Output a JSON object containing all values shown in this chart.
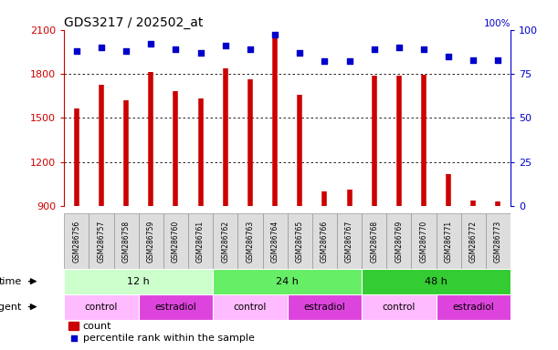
{
  "title": "GDS3217 / 202502_at",
  "samples": [
    "GSM286756",
    "GSM286757",
    "GSM286758",
    "GSM286759",
    "GSM286760",
    "GSM286761",
    "GSM286762",
    "GSM286763",
    "GSM286764",
    "GSM286765",
    "GSM286766",
    "GSM286767",
    "GSM286768",
    "GSM286769",
    "GSM286770",
    "GSM286771",
    "GSM286772",
    "GSM286773"
  ],
  "counts": [
    1565,
    1725,
    1620,
    1810,
    1680,
    1635,
    1840,
    1765,
    2060,
    1660,
    1000,
    1010,
    1785,
    1790,
    1795,
    1120,
    940,
    930
  ],
  "percentiles": [
    88,
    90,
    88,
    92,
    89,
    87,
    91,
    89,
    97,
    87,
    82,
    82,
    89,
    90,
    89,
    85,
    83,
    83
  ],
  "ylim_left": [
    900,
    2100
  ],
  "ylim_right": [
    0,
    100
  ],
  "yticks_left": [
    900,
    1200,
    1500,
    1800,
    2100
  ],
  "yticks_right": [
    0,
    25,
    50,
    75,
    100
  ],
  "bar_color": "#cc0000",
  "dot_color": "#0000cc",
  "grid_dotted_at": [
    1200,
    1500,
    1800
  ],
  "time_groups": [
    {
      "label": "12 h",
      "start": 0,
      "end": 6,
      "color": "#ccffcc"
    },
    {
      "label": "24 h",
      "start": 6,
      "end": 12,
      "color": "#66ee66"
    },
    {
      "label": "48 h",
      "start": 12,
      "end": 18,
      "color": "#33cc33"
    }
  ],
  "agent_groups": [
    {
      "label": "control",
      "start": 0,
      "end": 3,
      "color": "#ffbbff"
    },
    {
      "label": "estradiol",
      "start": 3,
      "end": 6,
      "color": "#dd44dd"
    },
    {
      "label": "control",
      "start": 6,
      "end": 9,
      "color": "#ffbbff"
    },
    {
      "label": "estradiol",
      "start": 9,
      "end": 12,
      "color": "#dd44dd"
    },
    {
      "label": "control",
      "start": 12,
      "end": 15,
      "color": "#ffbbff"
    },
    {
      "label": "estradiol",
      "start": 15,
      "end": 18,
      "color": "#dd44dd"
    }
  ],
  "legend_count_label": "count",
  "legend_pct_label": "percentile rank within the sample",
  "time_label": "time",
  "agent_label": "agent",
  "background_color": "#ffffff",
  "tickbox_color": "#dddddd",
  "tickbox_edge": "#999999"
}
